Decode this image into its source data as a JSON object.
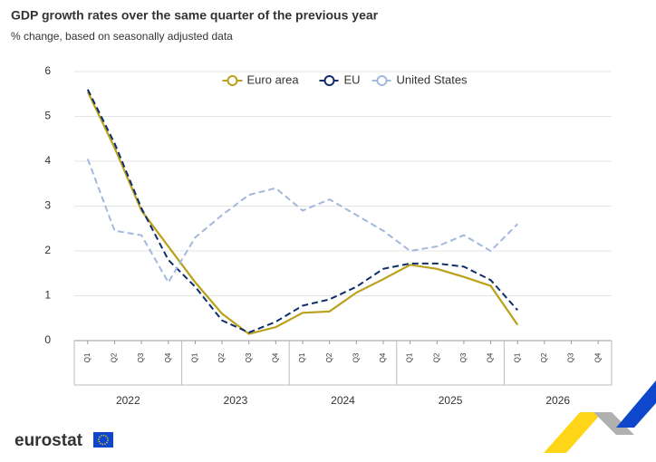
{
  "chart_data": {
    "type": "line",
    "title": "GDP growth rates over the same quarter of the previous year",
    "subtitle": "% change, based on seasonally adjusted data",
    "categories": [
      "Q1",
      "Q2",
      "Q3",
      "Q4",
      "Q1",
      "Q2",
      "Q3",
      "Q4",
      "Q1",
      "Q2",
      "Q3",
      "Q4",
      "Q1",
      "Q2",
      "Q3",
      "Q4",
      "Q1",
      "Q2",
      "Q3",
      "Q4"
    ],
    "years": [
      "2022",
      "2023",
      "2024",
      "2025",
      "2026"
    ],
    "series": [
      {
        "name": "Euro area",
        "color": "#b9a11b",
        "dash": false,
        "values": [
          5.55,
          4.3,
          2.9,
          2.1,
          1.3,
          0.6,
          0.15,
          0.3,
          0.62,
          0.65,
          1.07,
          1.37,
          1.69,
          1.6,
          1.42,
          1.22,
          0.35,
          null,
          null,
          null
        ]
      },
      {
        "name": "EU",
        "color": "#0e2d6b",
        "dash": true,
        "values": [
          5.6,
          4.4,
          2.95,
          1.8,
          1.2,
          0.45,
          0.18,
          0.42,
          0.78,
          0.92,
          1.2,
          1.6,
          1.72,
          1.72,
          1.65,
          1.35,
          0.68,
          null,
          null,
          null
        ]
      },
      {
        "name": "United States",
        "color": "#a3b8dc",
        "dash": true,
        "values": [
          4.05,
          2.45,
          2.35,
          1.3,
          2.3,
          2.8,
          3.25,
          3.4,
          2.9,
          3.15,
          2.8,
          2.45,
          2.0,
          2.1,
          2.35,
          2.0,
          2.6,
          null,
          null,
          null
        ]
      }
    ],
    "ylim": [
      0,
      6
    ],
    "yticks": [
      0,
      1,
      2,
      3,
      4,
      5,
      6
    ],
    "grid": true,
    "legend": "top"
  },
  "footer": {
    "logo": "eurostat"
  }
}
